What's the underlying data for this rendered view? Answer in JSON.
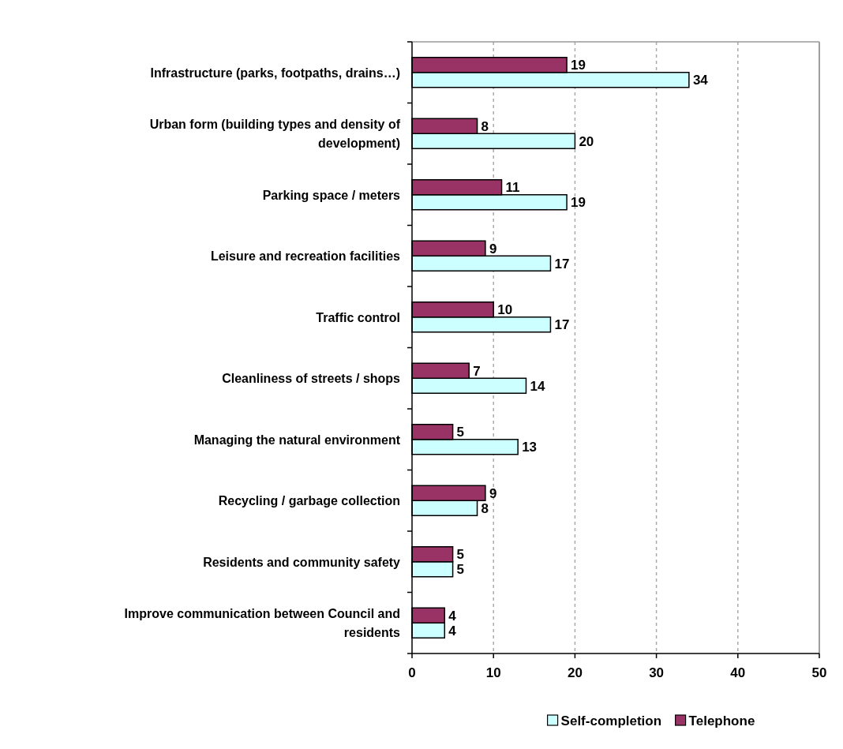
{
  "chart_data": {
    "type": "bar",
    "orientation": "horizontal",
    "categories": [
      "Infrastructure (parks, footpaths, drains…)",
      "Urban form (building types and density of development)",
      "Parking space / meters",
      "Leisure and recreation facilities",
      "Traffic control",
      "Cleanliness of streets / shops",
      "Managing the natural environment",
      "Recycling / garbage collection",
      "Residents and community safety",
      "Improve communication between Council and residents"
    ],
    "series": [
      {
        "name": "Self-completion",
        "color": "#ccffff",
        "values": [
          34,
          20,
          19,
          17,
          17,
          14,
          13,
          8,
          5,
          4
        ]
      },
      {
        "name": "Telephone",
        "color": "#993366",
        "values": [
          19,
          8,
          11,
          9,
          10,
          7,
          5,
          9,
          5,
          4
        ]
      }
    ],
    "xlim": [
      0,
      50
    ],
    "xticks": [
      0,
      10,
      20,
      30,
      40,
      50
    ],
    "grid": "x",
    "data_labels": true,
    "legend": "bottom"
  }
}
